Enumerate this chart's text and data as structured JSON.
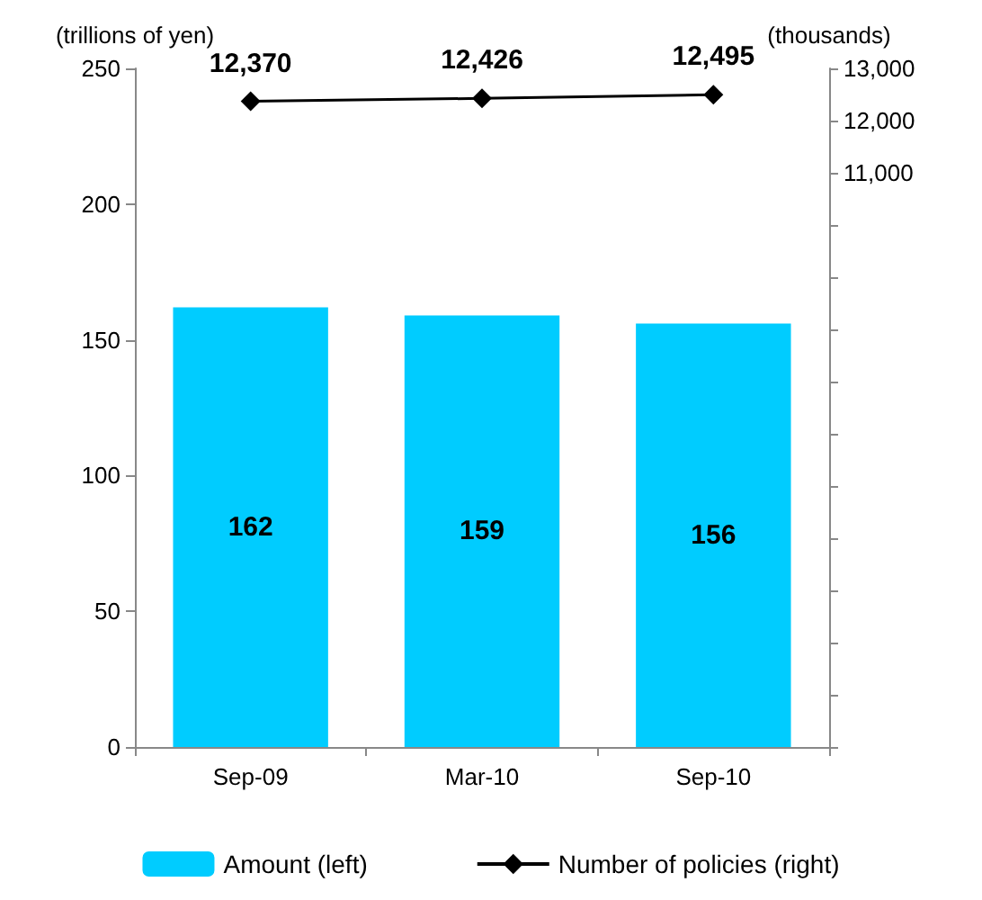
{
  "chart_data": {
    "type": "bar",
    "ylabel": "(trillions of yen)",
    "y2label": "(thousands)",
    "categories": [
      "Sep-09",
      "Mar-10",
      "Sep-10"
    ],
    "series": [
      {
        "name": "Amount (left)",
        "color": "#00ccff",
        "values": [
          162,
          159,
          156
        ]
      },
      {
        "name": "Number of policies (right)",
        "type": "line",
        "axis": "y2",
        "color": "#000000",
        "marker": "diamond",
        "values": [
          12370,
          12426,
          12495
        ],
        "value_labels": [
          "12,370",
          "12,426",
          "12,495"
        ]
      }
    ],
    "ylim": [
      0,
      250
    ],
    "yticks": [
      0,
      50,
      100,
      150,
      200,
      250
    ],
    "y2lim": [
      0,
      13000
    ],
    "y2ticks": [
      {
        "value": 0,
        "label": null
      },
      {
        "value": 1000,
        "label": null
      },
      {
        "value": 2000,
        "label": null
      },
      {
        "value": 3000,
        "label": null
      },
      {
        "value": 4000,
        "label": null
      },
      {
        "value": 5000,
        "label": null
      },
      {
        "value": 6000,
        "label": null
      },
      {
        "value": 7000,
        "label": null
      },
      {
        "value": 8000,
        "label": null
      },
      {
        "value": 9000,
        "label": null
      },
      {
        "value": 10000,
        "label": null
      },
      {
        "value": 11000,
        "label": "11,000"
      },
      {
        "value": 12000,
        "label": "12,000"
      },
      {
        "value": 13000,
        "label": "13,000"
      }
    ],
    "data_labels": true,
    "grid": false,
    "legend": "bottom"
  }
}
